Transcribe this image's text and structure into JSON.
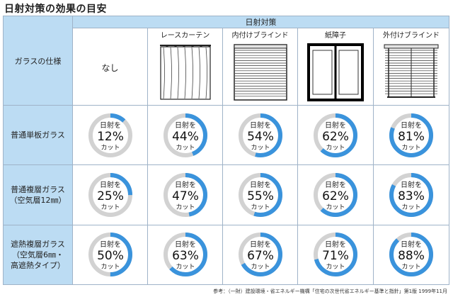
{
  "title": "日射対策の効果の目安",
  "header": {
    "spec_label": "ガラスの仕様",
    "group_label": "日射対策",
    "columns": [
      {
        "label": "なし",
        "icon": "none"
      },
      {
        "label": "レースカーテン",
        "icon": "lace-curtain-icon"
      },
      {
        "label": "内付けブラインド",
        "icon": "interior-blind-icon"
      },
      {
        "label": "紙障子",
        "icon": "shoji-icon"
      },
      {
        "label": "外付けブラインド",
        "icon": "exterior-blind-icon"
      }
    ]
  },
  "rows": [
    {
      "label_lines": [
        "普通単板ガラス"
      ],
      "cells": [
        {
          "top": "日射を",
          "pct": "12%",
          "bottom": "カット",
          "value": 12
        },
        {
          "top": "日射を",
          "pct": "44%",
          "bottom": "カット",
          "value": 44
        },
        {
          "top": "日射を",
          "pct": "54%",
          "bottom": "カット",
          "value": 54
        },
        {
          "top": "日射を",
          "pct": "62%",
          "bottom": "カット",
          "value": 62
        },
        {
          "top": "日射を",
          "pct": "81%",
          "bottom": "カット",
          "value": 81
        }
      ]
    },
    {
      "label_lines": [
        "普通複層ガラス",
        "（空気層12㎜）"
      ],
      "cells": [
        {
          "top": "日射を",
          "pct": "25%",
          "bottom": "カット",
          "value": 25
        },
        {
          "top": "日射を",
          "pct": "47%",
          "bottom": "カット",
          "value": 47
        },
        {
          "top": "日射を",
          "pct": "55%",
          "bottom": "カット",
          "value": 55
        },
        {
          "top": "日射を",
          "pct": "62%",
          "bottom": "カット",
          "value": 62
        },
        {
          "top": "日射を",
          "pct": "83%",
          "bottom": "カット",
          "value": 83
        }
      ]
    },
    {
      "label_lines": [
        "遮熱複層ガラス",
        "（空気層6㎜・",
        "高遮熱タイプ）"
      ],
      "cells": [
        {
          "top": "日射を",
          "pct": "50%",
          "bottom": "カット",
          "value": 50
        },
        {
          "top": "日射を",
          "pct": "63%",
          "bottom": "カット",
          "value": 63
        },
        {
          "top": "日射を",
          "pct": "67%",
          "bottom": "カット",
          "value": 67
        },
        {
          "top": "日射を",
          "pct": "71%",
          "bottom": "カット",
          "value": 71
        },
        {
          "top": "日射を",
          "pct": "88%",
          "bottom": "カット",
          "value": 88
        }
      ]
    }
  ],
  "colors": {
    "header_blue": "#bcdcf3",
    "ring_fill": "#3a93dc",
    "ring_track": "#d2d2d2"
  },
  "source": "参考：（一財）建設環境・省エネルギー機構「住宅の次世代省エネルギー基準と指針」第1版 1999年11月"
}
